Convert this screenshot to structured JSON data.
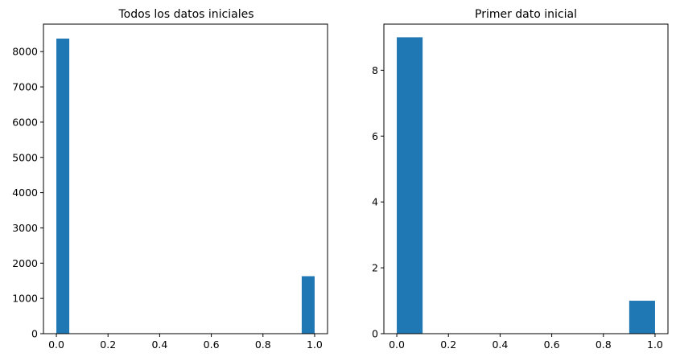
{
  "chart_data": [
    {
      "type": "bar",
      "title": "Todos los datos iniciales",
      "xlabel": "",
      "ylabel": "",
      "xlim": [
        -0.05,
        1.05
      ],
      "ylim": [
        0,
        8780
      ],
      "xticks": [
        "0.0",
        "0.2",
        "0.4",
        "0.6",
        "0.8",
        "1.0"
      ],
      "yticks": [
        "0",
        "1000",
        "2000",
        "3000",
        "4000",
        "5000",
        "6000",
        "7000",
        "8000"
      ],
      "bins": [
        {
          "x0": 0.0,
          "x1": 0.05,
          "value": 8370
        },
        {
          "x0": 0.95,
          "x1": 1.0,
          "value": 1630
        }
      ],
      "grid": false,
      "color": "#1f77b4"
    },
    {
      "type": "bar",
      "title": "Primer dato inicial",
      "xlabel": "",
      "ylabel": "",
      "xlim": [
        -0.05,
        1.05
      ],
      "ylim": [
        0,
        9.4
      ],
      "xticks": [
        "0.0",
        "0.2",
        "0.4",
        "0.6",
        "0.8",
        "1.0"
      ],
      "yticks": [
        "0",
        "2",
        "4",
        "6",
        "8"
      ],
      "bins": [
        {
          "x0": 0.0,
          "x1": 0.1,
          "value": 9
        },
        {
          "x0": 0.9,
          "x1": 1.0,
          "value": 1
        }
      ],
      "grid": false,
      "color": "#1f77b4"
    }
  ]
}
